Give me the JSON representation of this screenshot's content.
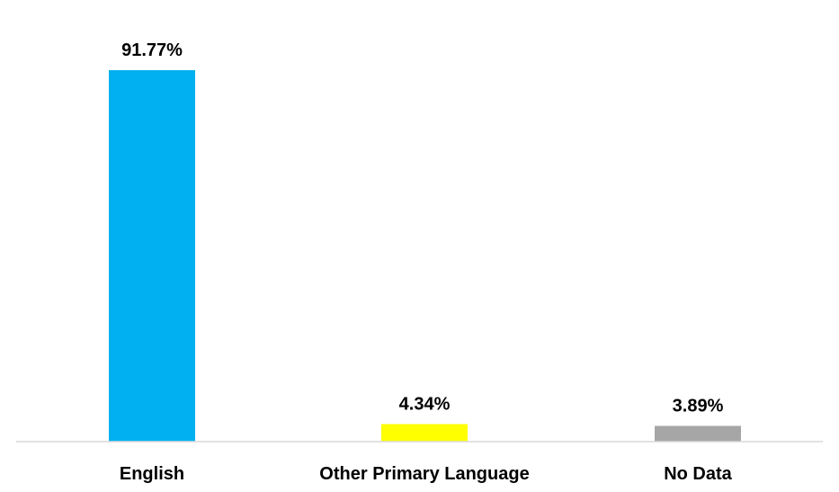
{
  "chart_data": {
    "type": "bar",
    "title": "",
    "xlabel": "",
    "ylabel": "",
    "ylim": [
      0,
      100
    ],
    "grid": false,
    "legend": "none",
    "categories": [
      "English",
      "Other Primary Language",
      "No Data"
    ],
    "values": [
      91.77,
      4.34,
      3.89
    ],
    "data_labels": [
      "91.77%",
      "4.34%",
      "3.89%"
    ],
    "colors": [
      "#00B0F0",
      "#FFFF00",
      "#A6A6A6"
    ],
    "axis_color": "#D9D9D9"
  }
}
